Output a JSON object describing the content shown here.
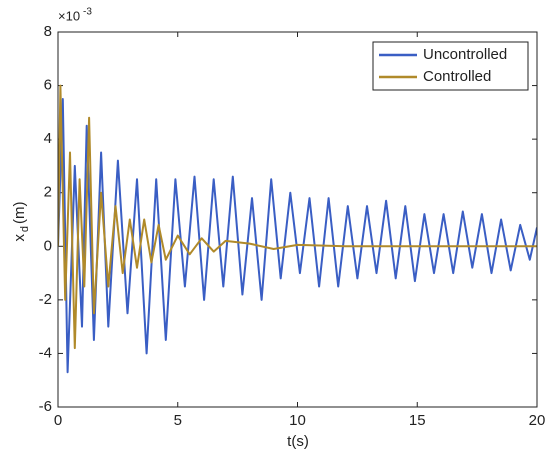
{
  "chart_data": {
    "type": "line",
    "xlabel": "t(s)",
    "ylabel": "x",
    "ylabel_sub": "d",
    "ylabel_unit": "(m)",
    "y_exponent_base": "×10",
    "y_exponent": "-3",
    "xlim": [
      0,
      20
    ],
    "xticks": [
      0,
      5,
      10,
      15,
      20
    ],
    "ylim": [
      -6,
      8
    ],
    "yticks": [
      -6,
      -4,
      -2,
      0,
      2,
      4,
      6,
      8
    ],
    "grid": false,
    "legend": "northeast",
    "series": [
      {
        "name": "Uncontrolled",
        "color": "#3a5ec4",
        "x": [
          0,
          0.2,
          0.4,
          0.7,
          1.0,
          1.2,
          1.5,
          1.8,
          2.1,
          2.5,
          2.9,
          3.3,
          3.7,
          4.1,
          4.5,
          4.9,
          5.3,
          5.7,
          6.1,
          6.5,
          6.9,
          7.3,
          7.7,
          8.1,
          8.5,
          8.9,
          9.3,
          9.7,
          10.1,
          10.5,
          10.9,
          11.3,
          11.7,
          12.1,
          12.5,
          12.9,
          13.3,
          13.7,
          14.1,
          14.5,
          14.9,
          15.3,
          15.7,
          16.1,
          16.5,
          16.9,
          17.3,
          17.7,
          18.1,
          18.5,
          18.9,
          19.3,
          19.7,
          20
        ],
        "values": [
          0,
          5.5,
          -4.7,
          3,
          -3,
          4.5,
          -3.5,
          3.5,
          -3,
          3.2,
          -2.5,
          2.5,
          -4,
          2.5,
          -3.5,
          2.5,
          -1.5,
          2.6,
          -2,
          2.5,
          -1.5,
          2.6,
          -1.8,
          1.8,
          -2,
          2.5,
          -1.2,
          2,
          -1,
          1.8,
          -1.5,
          1.8,
          -1.5,
          1.5,
          -1.2,
          1.5,
          -1,
          1.7,
          -1.2,
          1.5,
          -1.3,
          1.2,
          -1,
          1.2,
          -1,
          1.3,
          -0.8,
          1.2,
          -1,
          1,
          -0.9,
          0.8,
          -0.5,
          0.7
        ]
      },
      {
        "name": "Controlled",
        "color": "#b08a2a",
        "x": [
          0,
          0.1,
          0.3,
          0.5,
          0.7,
          0.9,
          1.1,
          1.3,
          1.5,
          1.8,
          2.1,
          2.4,
          2.7,
          3.0,
          3.3,
          3.6,
          3.9,
          4.2,
          4.5,
          5,
          5.5,
          6,
          6.5,
          7,
          8,
          9,
          10,
          12,
          20
        ],
        "values": [
          0,
          6,
          -2,
          3.5,
          -3.8,
          2.5,
          -1.5,
          4.8,
          -2.5,
          2,
          -1.5,
          1.5,
          -1,
          1,
          -0.8,
          1,
          -0.6,
          0.8,
          -0.5,
          0.4,
          -0.3,
          0.3,
          -0.2,
          0.2,
          0.1,
          -0.1,
          0.05,
          0,
          0
        ]
      }
    ]
  }
}
